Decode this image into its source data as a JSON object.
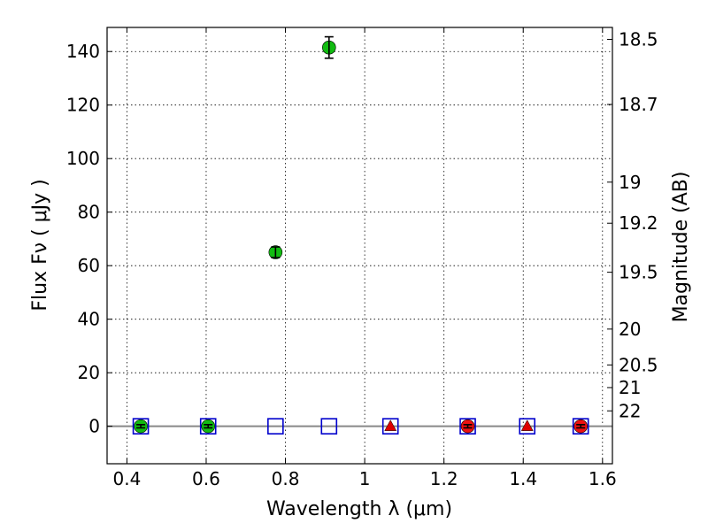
{
  "chart_data": {
    "type": "scatter",
    "xlabel": "Wavelength  λ (μm)",
    "ylabel": "Flux  Fν  ( μJy )",
    "ylabel_right": "Magnitude (AB)",
    "xlim": [
      0.35,
      1.625
    ],
    "ylim": [
      -14,
      149
    ],
    "grid": true,
    "x_ticks": [
      0.4,
      0.6,
      0.8,
      1.0,
      1.2,
      1.4,
      1.6
    ],
    "x_tick_labels": [
      "0.4",
      "0.6",
      "0.8",
      "1",
      "1.2",
      "1.4",
      "1.6"
    ],
    "y_ticks": [
      0,
      20,
      40,
      60,
      80,
      100,
      120,
      140
    ],
    "y_tick_labels": [
      "0",
      "20",
      "40",
      "60",
      "80",
      "100",
      "120",
      "140"
    ],
    "right_ticks": [
      {
        "label": "18.5",
        "value": 18.5
      },
      {
        "label": "18.7",
        "value": 18.7
      },
      {
        "label": "19",
        "value": 19
      },
      {
        "label": "19.2",
        "value": 19.2
      },
      {
        "label": "19.5",
        "value": 19.5
      },
      {
        "label": "20",
        "value": 20
      },
      {
        "label": "20.5",
        "value": 20.5
      },
      {
        "label": "21",
        "value": 21
      },
      {
        "label": "22",
        "value": 22
      }
    ],
    "zero_line": true,
    "series": [
      {
        "marker": "circle",
        "color": "#11bb11",
        "points": [
          {
            "x": 0.435,
            "y": 0,
            "err": 0.6
          },
          {
            "x": 0.605,
            "y": 0,
            "err": 0.6
          },
          {
            "x": 0.775,
            "y": 65,
            "err": 2
          },
          {
            "x": 0.91,
            "y": 141.5,
            "err": 4
          }
        ]
      },
      {
        "marker": "square-open",
        "color": "#0000cc",
        "points": [
          {
            "x": 0.435,
            "y": 0
          },
          {
            "x": 0.605,
            "y": 0
          },
          {
            "x": 0.775,
            "y": 0
          },
          {
            "x": 0.91,
            "y": 0
          },
          {
            "x": 1.065,
            "y": 0
          },
          {
            "x": 1.26,
            "y": 0
          },
          {
            "x": 1.41,
            "y": 0
          },
          {
            "x": 1.545,
            "y": 0
          }
        ]
      },
      {
        "marker": "triangle",
        "color": "#dd0000",
        "points": [
          {
            "x": 1.065,
            "y": 0
          },
          {
            "x": 1.41,
            "y": 0
          }
        ]
      },
      {
        "marker": "circle",
        "color": "#ee1111",
        "points": [
          {
            "x": 1.26,
            "y": 0,
            "err": 0.6
          },
          {
            "x": 1.545,
            "y": 0,
            "err": 0.6
          }
        ]
      }
    ]
  }
}
